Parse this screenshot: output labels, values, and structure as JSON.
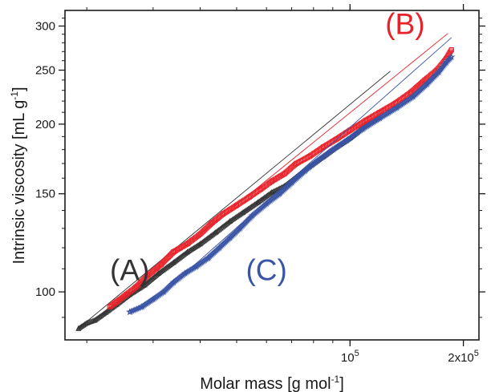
{
  "chart_data": {
    "type": "scatter",
    "title": "",
    "xlabel": "Molar mass [g mol",
    "xlabel_sup": "-1",
    "xlabel_end": "]",
    "ylabel": "Intrinsic viscosity [mL g",
    "ylabel_sup": "-1",
    "ylabel_end": "]",
    "x_scale": "log",
    "y_scale": "log",
    "xlim": [
      17500,
      220000
    ],
    "ylim": [
      82,
      320
    ],
    "x_ticks": [
      {
        "value": 100000,
        "base": "10",
        "sup": "5"
      },
      {
        "value": 200000,
        "base": "2x10",
        "sup": "5"
      }
    ],
    "y_ticks": [
      {
        "value": 100,
        "label": "100"
      },
      {
        "value": 150,
        "label": "150"
      },
      {
        "value": 200,
        "label": "200"
      },
      {
        "value": 250,
        "label": "250"
      },
      {
        "value": 300,
        "label": "300"
      }
    ],
    "grid": false,
    "legend": "none",
    "series": [
      {
        "name": "(A)",
        "color": "#333333",
        "marker": "triangle",
        "points": [
          [
            19000,
            86
          ],
          [
            20000,
            88
          ],
          [
            21000,
            89
          ],
          [
            22500,
            92
          ],
          [
            24000,
            95
          ],
          [
            26000,
            99
          ],
          [
            28500,
            103
          ],
          [
            31000,
            108
          ],
          [
            34000,
            113
          ],
          [
            37000,
            118
          ],
          [
            40000,
            122
          ],
          [
            44000,
            128
          ],
          [
            48000,
            134
          ],
          [
            52000,
            139
          ],
          [
            57000,
            145
          ],
          [
            62000,
            151
          ],
          [
            67000,
            155
          ],
          [
            72000,
            161
          ],
          [
            78000,
            168
          ],
          [
            85000,
            175
          ],
          [
            92000,
            182
          ],
          [
            100000,
            189
          ],
          [
            110000,
            199
          ],
          [
            120000,
            206
          ]
        ],
        "fit": [
          [
            19000,
            86
          ],
          [
            128000,
            249
          ]
        ],
        "label_pos": {
          "x": 26000,
          "y": 105
        }
      },
      {
        "name": "(B)",
        "color": "#e8222a",
        "marker": "square",
        "points": [
          [
            23000,
            94
          ],
          [
            24000,
            96
          ],
          [
            25500,
            99
          ],
          [
            27000,
            102
          ],
          [
            29000,
            107
          ],
          [
            31500,
            112
          ],
          [
            34000,
            118
          ],
          [
            37000,
            122
          ],
          [
            40000,
            127
          ],
          [
            43000,
            133
          ],
          [
            46000,
            138
          ],
          [
            50000,
            143
          ],
          [
            54000,
            148
          ],
          [
            58000,
            153
          ],
          [
            62000,
            158
          ],
          [
            67000,
            163
          ],
          [
            72000,
            170
          ],
          [
            78000,
            175
          ],
          [
            85000,
            182
          ],
          [
            92000,
            188
          ],
          [
            100000,
            195
          ],
          [
            110000,
            203
          ],
          [
            120000,
            210
          ],
          [
            132000,
            218
          ],
          [
            145000,
            228
          ],
          [
            158000,
            240
          ],
          [
            170000,
            250
          ],
          [
            180000,
            262
          ],
          [
            186000,
            272
          ]
        ],
        "fit": [
          [
            24000,
            96
          ],
          [
            182000,
            291
          ]
        ],
        "label_pos": {
          "x": 140000,
          "y": 290
        }
      },
      {
        "name": "(C)",
        "color": "#3a55a5",
        "marker": "star",
        "points": [
          [
            26000,
            92
          ],
          [
            28000,
            94
          ],
          [
            30000,
            97
          ],
          [
            32000,
            100
          ],
          [
            34000,
            104
          ],
          [
            36500,
            108
          ],
          [
            39000,
            111
          ],
          [
            42000,
            115
          ],
          [
            45000,
            120
          ],
          [
            48000,
            125
          ],
          [
            51000,
            130
          ],
          [
            55000,
            137
          ],
          [
            60000,
            144
          ],
          [
            65000,
            150
          ],
          [
            70000,
            157
          ],
          [
            76000,
            165
          ],
          [
            82000,
            172
          ],
          [
            90000,
            180
          ],
          [
            98000,
            187
          ],
          [
            108000,
            196
          ],
          [
            120000,
            205
          ],
          [
            133000,
            214
          ],
          [
            147000,
            224
          ],
          [
            160000,
            236
          ],
          [
            172000,
            248
          ],
          [
            180000,
            258
          ],
          [
            186000,
            264
          ]
        ],
        "fit": [
          [
            31000,
            98
          ],
          [
            186000,
            286
          ]
        ],
        "label_pos": {
          "x": 60000,
          "y": 105
        }
      }
    ]
  }
}
